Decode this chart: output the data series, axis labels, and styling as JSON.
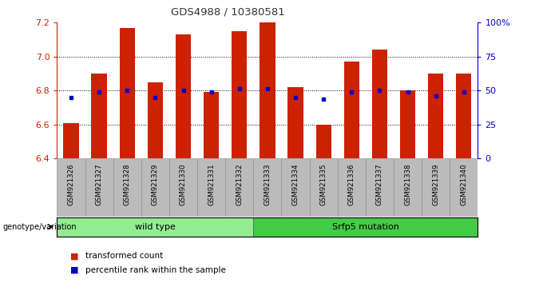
{
  "title": "GDS4988 / 10380581",
  "samples": [
    "GSM921326",
    "GSM921327",
    "GSM921328",
    "GSM921329",
    "GSM921330",
    "GSM921331",
    "GSM921332",
    "GSM921333",
    "GSM921334",
    "GSM921335",
    "GSM921336",
    "GSM921337",
    "GSM921338",
    "GSM921339",
    "GSM921340"
  ],
  "bar_values": [
    6.61,
    6.9,
    7.17,
    6.85,
    7.13,
    6.79,
    7.15,
    7.2,
    6.82,
    6.6,
    6.97,
    7.04,
    6.8,
    6.9,
    6.9
  ],
  "percentile_values": [
    6.76,
    6.79,
    6.8,
    6.76,
    6.8,
    6.79,
    6.81,
    6.81,
    6.76,
    6.75,
    6.79,
    6.8,
    6.79,
    6.77,
    6.79
  ],
  "bar_bottom": 6.4,
  "ylim_left": [
    6.4,
    7.2
  ],
  "ylim_right": [
    0,
    100
  ],
  "yticks_left": [
    6.4,
    6.6,
    6.8,
    7.0,
    7.2
  ],
  "yticks_right": [
    0,
    25,
    50,
    75,
    100
  ],
  "ytick_labels_right": [
    "0",
    "25",
    "50",
    "75",
    "100%"
  ],
  "bar_color": "#cc2200",
  "percentile_color": "#0000cc",
  "genotype_groups": [
    {
      "label": "wild type",
      "start": 0,
      "end": 7,
      "color": "#90ee90"
    },
    {
      "label": "Srfp5 mutation",
      "start": 7,
      "end": 15,
      "color": "#44cc44"
    }
  ],
  "legend_items": [
    {
      "label": "transformed count",
      "color": "#cc2200"
    },
    {
      "label": "percentile rank within the sample",
      "color": "#0000cc"
    }
  ],
  "genotype_label": "genotype/variation",
  "title_color": "#333333",
  "axis_color_left": "#cc2200",
  "axis_color_right": "#0000cc",
  "grid_color": "#000000",
  "tick_bg_color": "#bbbbbb"
}
